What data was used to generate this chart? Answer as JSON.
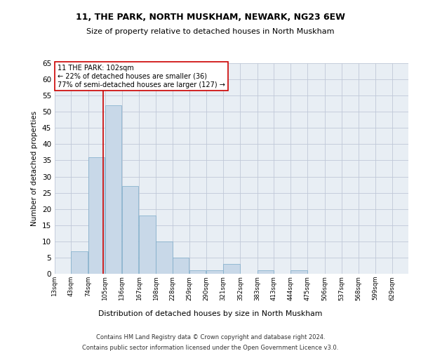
{
  "title1": "11, THE PARK, NORTH MUSKHAM, NEWARK, NG23 6EW",
  "title2": "Size of property relative to detached houses in North Muskham",
  "xlabel": "Distribution of detached houses by size in North Muskham",
  "ylabel": "Number of detached properties",
  "footer1": "Contains HM Land Registry data © Crown copyright and database right 2024.",
  "footer2": "Contains public sector information licensed under the Open Government Licence v3.0.",
  "bin_edges": [
    13,
    43,
    74,
    105,
    136,
    167,
    198,
    228,
    259,
    290,
    321,
    352,
    383,
    413,
    444,
    475,
    506,
    537,
    568,
    599,
    629
  ],
  "bin_labels": [
    "13sqm",
    "43sqm",
    "74sqm",
    "105sqm",
    "136sqm",
    "167sqm",
    "198sqm",
    "228sqm",
    "259sqm",
    "290sqm",
    "321sqm",
    "352sqm",
    "383sqm",
    "413sqm",
    "444sqm",
    "475sqm",
    "506sqm",
    "537sqm",
    "568sqm",
    "599sqm",
    "629sqm"
  ],
  "counts": [
    0,
    7,
    36,
    52,
    27,
    18,
    10,
    5,
    1,
    1,
    3,
    0,
    1,
    0,
    1,
    0,
    0,
    0,
    0,
    0,
    0
  ],
  "bar_facecolor": "#c8d8e8",
  "bar_edgecolor": "#7aaac8",
  "grid_color": "#c0c8d8",
  "background_color": "#e8eef4",
  "property_size": 102,
  "redline_color": "#cc0000",
  "annotation_line1": "11 THE PARK: 102sqm",
  "annotation_line2": "← 22% of detached houses are smaller (36)",
  "annotation_line3": "77% of semi-detached houses are larger (127) →",
  "annotation_box_color": "#ffffff",
  "annotation_border_color": "#cc0000",
  "ylim": [
    0,
    65
  ],
  "yticks": [
    0,
    5,
    10,
    15,
    20,
    25,
    30,
    35,
    40,
    45,
    50,
    55,
    60,
    65
  ]
}
